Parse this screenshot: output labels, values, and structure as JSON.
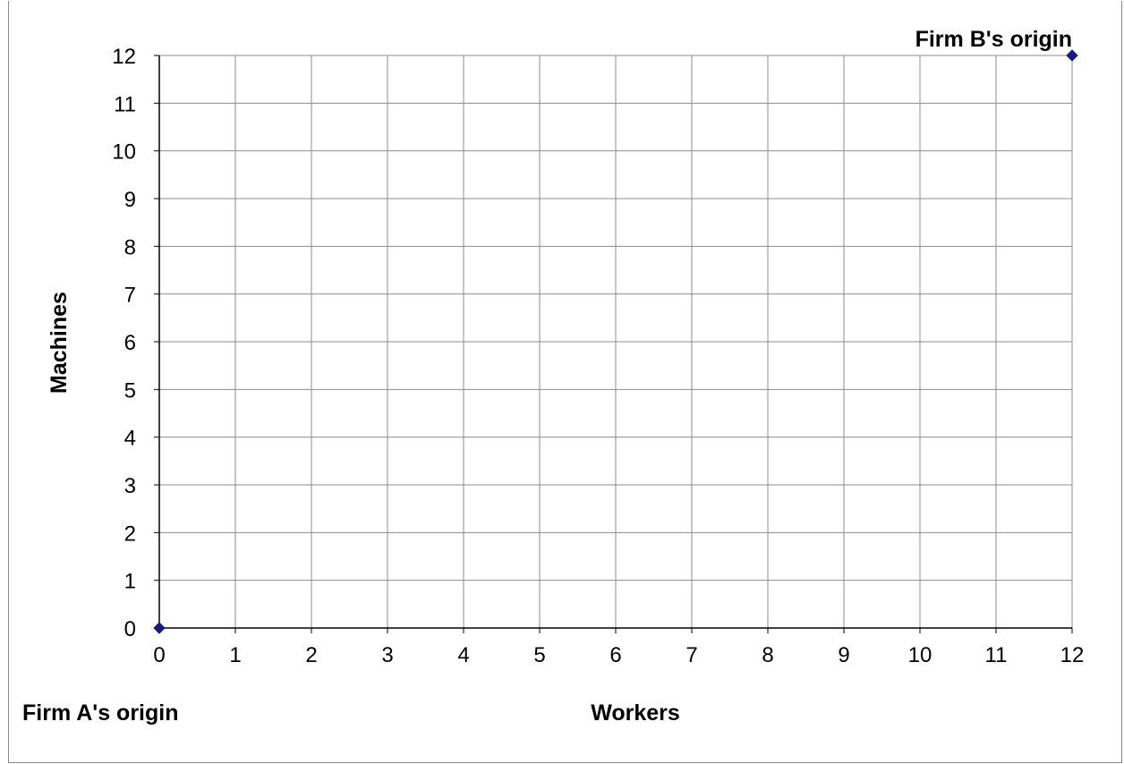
{
  "chart_data": {
    "type": "scatter",
    "title": "",
    "xlabel": "Workers",
    "ylabel": "Machines",
    "xlim": [
      0,
      12
    ],
    "ylim": [
      0,
      12
    ],
    "xticks": [
      "0",
      "1",
      "2",
      "3",
      "4",
      "5",
      "6",
      "7",
      "8",
      "9",
      "10",
      "11",
      "12"
    ],
    "yticks": [
      "0",
      "1",
      "2",
      "3",
      "4",
      "5",
      "6",
      "7",
      "8",
      "9",
      "10",
      "11",
      "12"
    ],
    "grid": true,
    "legend": "none",
    "series": [
      {
        "color": "#1a1a7a",
        "marker": "diamond",
        "points": [
          [
            0,
            0
          ],
          [
            12,
            12
          ]
        ]
      }
    ],
    "annotations": {
      "origin_a": "Firm A's origin",
      "origin_b": "Firm B's origin"
    }
  }
}
